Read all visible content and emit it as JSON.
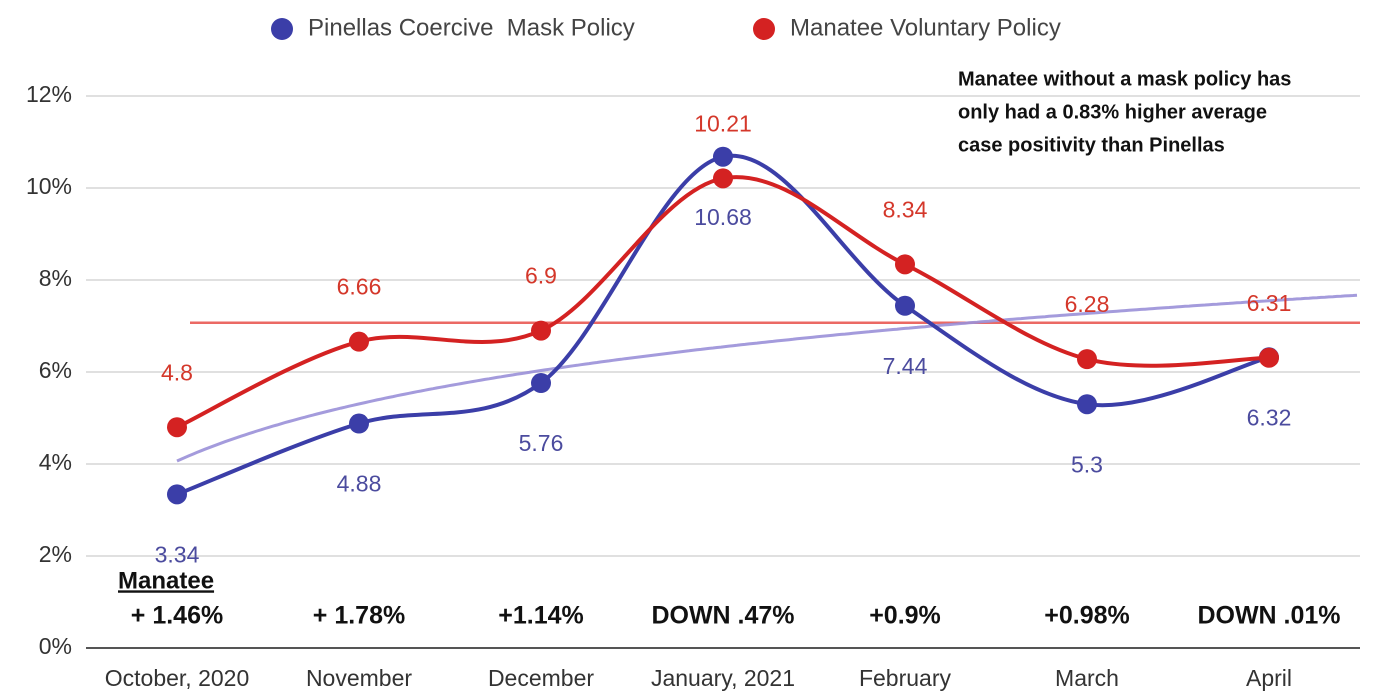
{
  "chart_data": {
    "type": "line",
    "categories": [
      "October, 2020",
      "November",
      "December",
      "January, 2021",
      "February",
      "March",
      "April"
    ],
    "series": [
      {
        "name": "Pinellas Coercive  Mask Policy",
        "color": "#3b3ea8",
        "label_color": "#4b4b9e",
        "values": [
          3.34,
          4.88,
          5.76,
          10.68,
          7.44,
          5.3,
          6.32
        ]
      },
      {
        "name": "Manatee Voluntary Policy",
        "color": "#d42222",
        "label_color": "#d4372a",
        "values": [
          4.8,
          6.66,
          6.9,
          10.21,
          8.34,
          6.28,
          6.31
        ]
      }
    ],
    "ylim": [
      0,
      12
    ],
    "yticks": [
      {
        "value": 0,
        "label": "0%"
      },
      {
        "value": 2,
        "label": "2%"
      },
      {
        "value": 4,
        "label": "4%"
      },
      {
        "value": 6,
        "label": "6%"
      },
      {
        "value": 8,
        "label": "8%"
      },
      {
        "value": 10,
        "label": "10%"
      },
      {
        "value": 12,
        "label": "12%"
      }
    ],
    "grid": true,
    "legend": "top",
    "annotation": [
      "Manatee without a mask policy has",
      "only had a 0.83% higher average",
      "case positivity than Pinellas"
    ],
    "difference_heading": "Manatee",
    "differences": [
      "+ 1.46%",
      "+ 1.78%",
      "+1.14%",
      "DOWN .47%",
      "+0.9%",
      "+0.98%",
      "DOWN .01%"
    ]
  }
}
